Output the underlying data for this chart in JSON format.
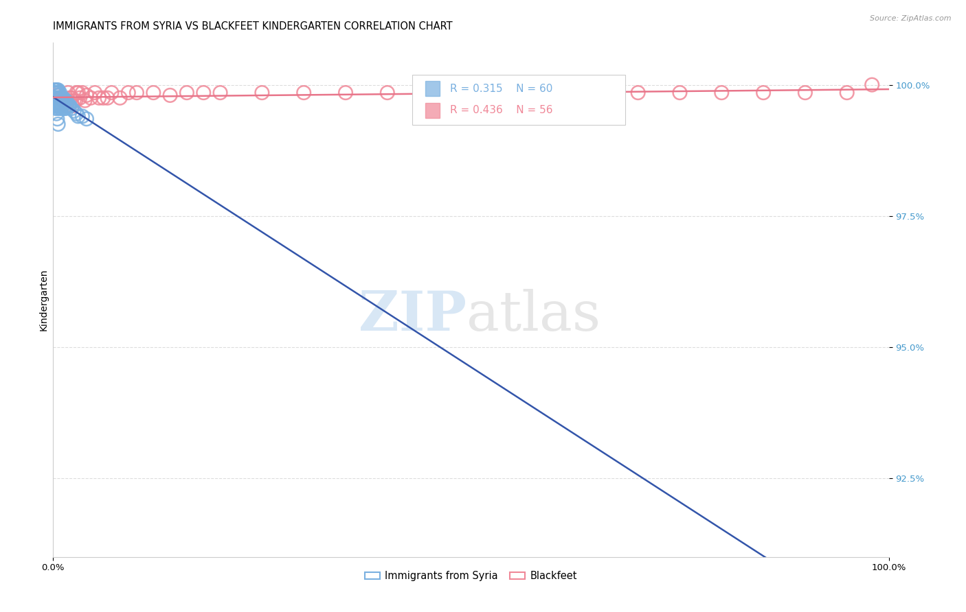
{
  "title": "IMMIGRANTS FROM SYRIA VS BLACKFEET KINDERGARTEN CORRELATION CHART",
  "source": "Source: ZipAtlas.com",
  "ylabel": "Kindergarten",
  "ytick_values": [
    1.0,
    0.975,
    0.95,
    0.925
  ],
  "xlim": [
    0.0,
    1.0
  ],
  "ylim": [
    0.91,
    1.008
  ],
  "watermark_zip": "ZIP",
  "watermark_atlas": "atlas",
  "syria_color": "#7ab0e0",
  "blackfeet_color": "#f08898",
  "syria_line_color": "#3355aa",
  "blackfeet_line_color": "#e8758a",
  "syria_R": 0.315,
  "syria_N": 60,
  "blackfeet_R": 0.436,
  "blackfeet_N": 56,
  "syria_x": [
    0.001,
    0.001,
    0.002,
    0.002,
    0.002,
    0.003,
    0.003,
    0.003,
    0.003,
    0.004,
    0.004,
    0.004,
    0.004,
    0.005,
    0.005,
    0.005,
    0.005,
    0.006,
    0.006,
    0.006,
    0.006,
    0.006,
    0.007,
    0.007,
    0.007,
    0.008,
    0.008,
    0.008,
    0.009,
    0.009,
    0.009,
    0.01,
    0.01,
    0.01,
    0.011,
    0.011,
    0.012,
    0.012,
    0.013,
    0.013,
    0.014,
    0.015,
    0.015,
    0.016,
    0.017,
    0.018,
    0.019,
    0.02,
    0.022,
    0.025,
    0.028,
    0.03,
    0.035,
    0.04,
    0.001,
    0.002,
    0.003,
    0.004,
    0.005,
    0.006
  ],
  "syria_y": [
    0.999,
    0.9985,
    0.9985,
    0.9975,
    0.9965,
    0.999,
    0.9985,
    0.9975,
    0.9965,
    0.999,
    0.9985,
    0.9975,
    0.996,
    0.999,
    0.9985,
    0.9975,
    0.996,
    0.999,
    0.998,
    0.9975,
    0.9965,
    0.9955,
    0.998,
    0.9975,
    0.9965,
    0.9985,
    0.9975,
    0.996,
    0.9975,
    0.9965,
    0.9955,
    0.9975,
    0.9965,
    0.9955,
    0.997,
    0.996,
    0.9975,
    0.996,
    0.997,
    0.9955,
    0.997,
    0.997,
    0.9955,
    0.996,
    0.9965,
    0.996,
    0.996,
    0.996,
    0.9955,
    0.995,
    0.9945,
    0.994,
    0.994,
    0.9935,
    0.9975,
    0.9965,
    0.9955,
    0.9945,
    0.9935,
    0.9925
  ],
  "blackfeet_x": [
    0.003,
    0.005,
    0.006,
    0.008,
    0.01,
    0.012,
    0.015,
    0.018,
    0.02,
    0.022,
    0.025,
    0.028,
    0.03,
    0.035,
    0.04,
    0.05,
    0.06,
    0.07,
    0.08,
    0.09,
    0.1,
    0.12,
    0.14,
    0.16,
    0.18,
    0.2,
    0.25,
    0.3,
    0.35,
    0.4,
    0.45,
    0.5,
    0.55,
    0.6,
    0.65,
    0.7,
    0.75,
    0.8,
    0.85,
    0.9,
    0.95,
    0.98,
    0.004,
    0.007,
    0.009,
    0.011,
    0.013,
    0.016,
    0.019,
    0.023,
    0.027,
    0.032,
    0.038,
    0.045,
    0.055,
    0.065
  ],
  "blackfeet_y": [
    0.999,
    0.998,
    0.9985,
    0.9975,
    0.9975,
    0.9975,
    0.997,
    0.9985,
    0.9975,
    0.9975,
    0.997,
    0.9985,
    0.9985,
    0.9985,
    0.998,
    0.9985,
    0.9975,
    0.9985,
    0.9975,
    0.9985,
    0.9985,
    0.9985,
    0.998,
    0.9985,
    0.9985,
    0.9985,
    0.9985,
    0.9985,
    0.9985,
    0.9985,
    0.9985,
    0.9985,
    0.9985,
    0.9985,
    0.9985,
    0.9985,
    0.9985,
    0.9985,
    0.9985,
    0.9985,
    0.9985,
    1.0,
    0.9965,
    0.9975,
    0.9965,
    0.997,
    0.997,
    0.996,
    0.996,
    0.996,
    0.997,
    0.9975,
    0.997,
    0.9975,
    0.9975,
    0.9975
  ],
  "grid_color": "#dddddd",
  "background_color": "#ffffff",
  "title_fontsize": 10.5,
  "axis_fontsize": 10,
  "tick_fontsize": 9.5,
  "legend_label_syria": "Immigrants from Syria",
  "legend_label_blackfeet": "Blackfeet"
}
